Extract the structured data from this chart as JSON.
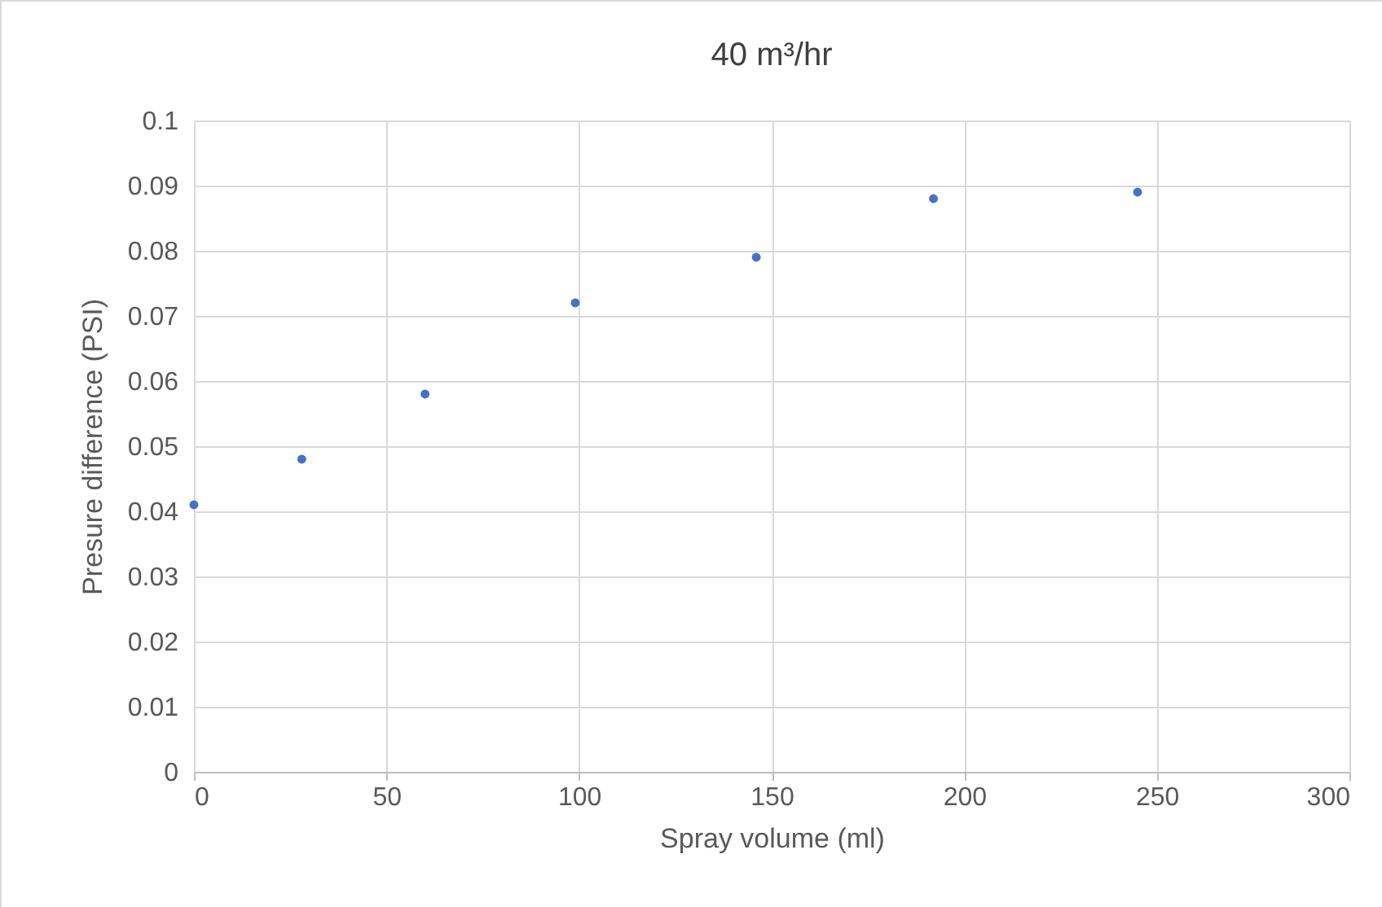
{
  "chart_data": {
    "type": "scatter",
    "title": "40 m³/hr",
    "xlabel": "Spray volume (ml)",
    "ylabel": "Presure difference (PSI)",
    "x": [
      0,
      28,
      60,
      99,
      146,
      192,
      245
    ],
    "series": [
      {
        "color": "#4472c4",
        "values": [
          0.041,
          0.048,
          0.058,
          0.072,
          0.079,
          0.088,
          0.089
        ]
      }
    ],
    "xlim": [
      0,
      300
    ],
    "xticks": [
      0,
      50,
      100,
      150,
      200,
      250,
      300
    ],
    "ylim": [
      0,
      0.1
    ],
    "yticks": [
      0,
      0.01,
      0.02,
      0.03,
      0.04,
      0.05,
      0.06,
      0.07,
      0.08,
      0.09,
      0.1
    ],
    "grid": true,
    "marker": "circle",
    "legend": false
  }
}
